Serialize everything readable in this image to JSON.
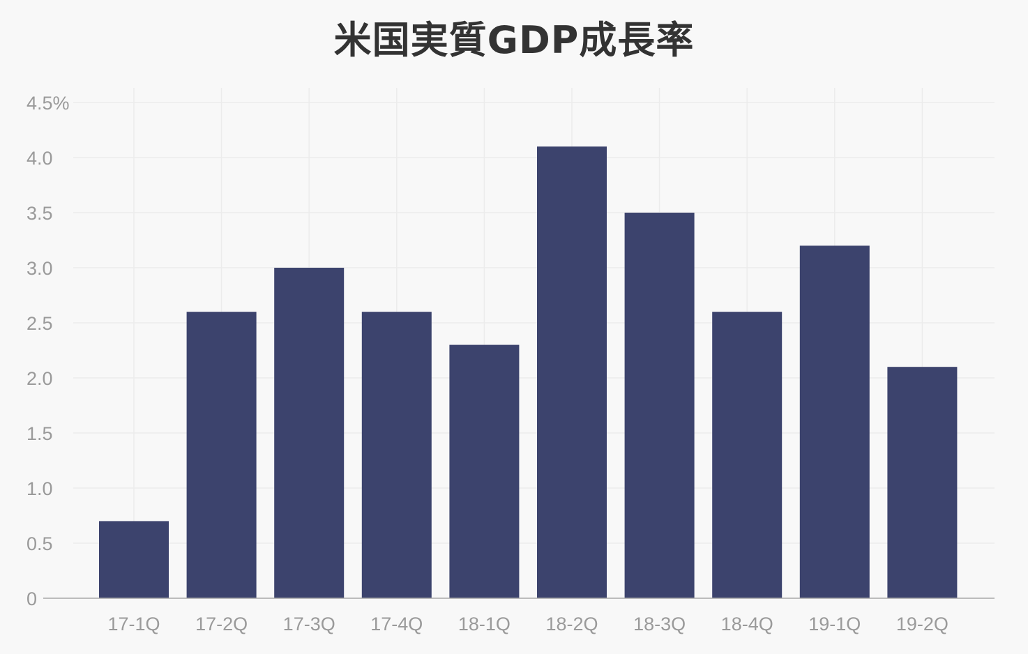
{
  "chart_data": {
    "type": "bar",
    "title": "米国実質GDP成長率",
    "xlabel": "",
    "ylabel": "",
    "categories": [
      "17-1Q",
      "17-2Q",
      "17-3Q",
      "17-4Q",
      "18-1Q",
      "18-2Q",
      "18-3Q",
      "18-4Q",
      "19-1Q",
      "19-2Q"
    ],
    "values": [
      0.7,
      2.6,
      3.0,
      2.6,
      2.3,
      4.1,
      3.5,
      2.6,
      3.2,
      2.1
    ],
    "ylim": [
      0,
      4.5
    ],
    "yticks": [
      0,
      0.5,
      1.0,
      1.5,
      2.0,
      2.5,
      3.0,
      3.5,
      4.0,
      4.5
    ],
    "ytick_labels": [
      "0",
      "0.5",
      "1.0",
      "1.5",
      "2.0",
      "2.5",
      "3.0",
      "3.5",
      "4.0",
      "4.5%"
    ],
    "grid": true,
    "legend": "none",
    "colors": {
      "bar": "#3c436d",
      "grid": "#ececec",
      "axis": "#a8a8a8",
      "tick_text": "#9a9a9a",
      "title": "#333333",
      "background": "#f8f8f8"
    }
  }
}
